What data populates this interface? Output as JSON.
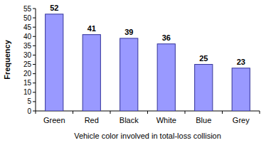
{
  "chart_data": {
    "type": "bar",
    "categories": [
      "Green",
      "Red",
      "Black",
      "White",
      "Blue",
      "Grey"
    ],
    "values": [
      52,
      41,
      39,
      36,
      25,
      23
    ],
    "color": "#9999ff",
    "x_label": "Vehicle color involved in total-loss collision",
    "y_label": "Frequency",
    "ylim": [
      0,
      55
    ],
    "yticks": [
      0,
      5,
      10,
      15,
      20,
      25,
      30,
      35,
      40,
      45,
      50,
      55
    ],
    "data_labels": true,
    "grid": false
  }
}
